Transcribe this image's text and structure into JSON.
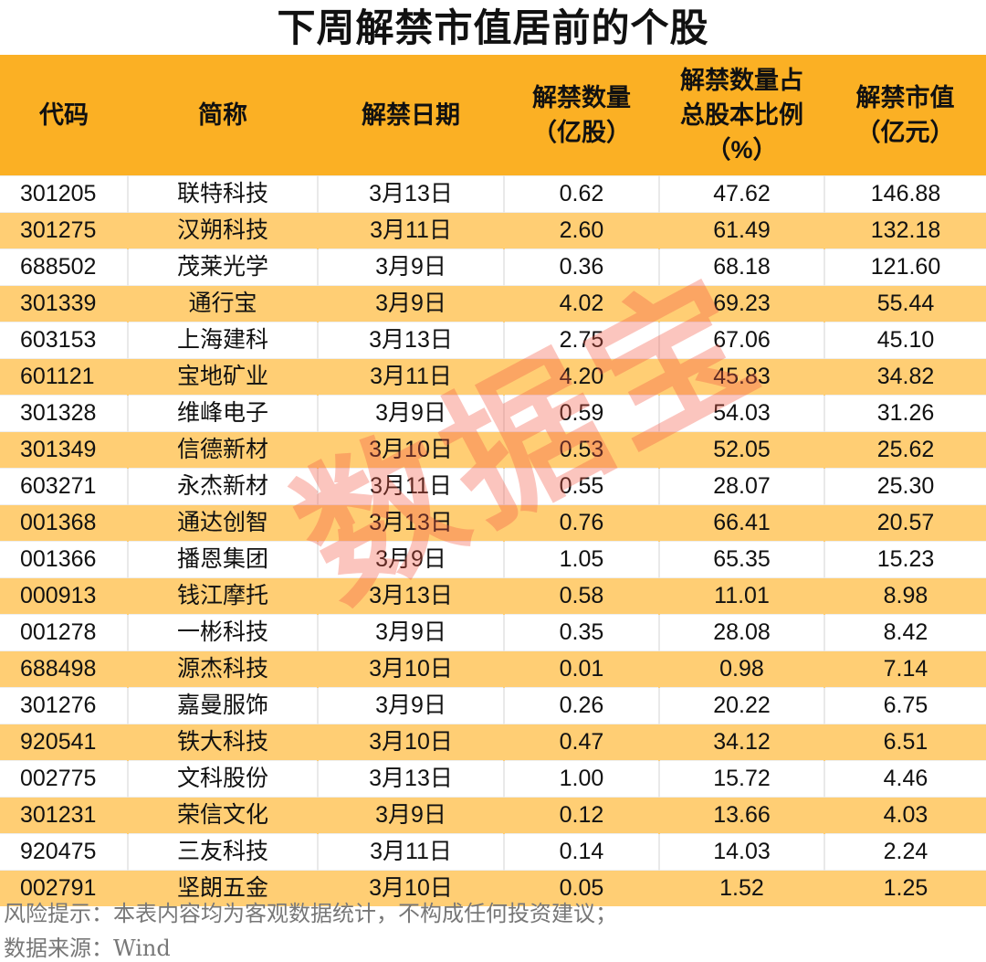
{
  "title": "下周解禁市值居前的个股",
  "watermark": "数据宝",
  "colors": {
    "header_bg": "#FBB024",
    "alt_row_bg": "#FFCE74",
    "watermark": "#F45A46"
  },
  "chart_data": {
    "type": "table",
    "title": "下周解禁市值居前的个股",
    "columns": [
      "代码",
      "简称",
      "解禁日期",
      "解禁数量\n（亿股）",
      "解禁数量占\n总股本比例\n（%）",
      "解禁市值\n（亿元）"
    ],
    "rows": [
      [
        "301205",
        "联特科技",
        "3月13日",
        "0.62",
        "47.62",
        "146.88"
      ],
      [
        "301275",
        "汉朔科技",
        "3月11日",
        "2.60",
        "61.49",
        "132.18"
      ],
      [
        "688502",
        "茂莱光学",
        "3月9日",
        "0.36",
        "68.18",
        "121.60"
      ],
      [
        "301339",
        "通行宝",
        "3月9日",
        "4.02",
        "69.23",
        "55.44"
      ],
      [
        "603153",
        "上海建科",
        "3月13日",
        "2.75",
        "67.06",
        "45.10"
      ],
      [
        "601121",
        "宝地矿业",
        "3月11日",
        "4.20",
        "45.83",
        "34.82"
      ],
      [
        "301328",
        "维峰电子",
        "3月9日",
        "0.59",
        "54.03",
        "31.26"
      ],
      [
        "301349",
        "信德新材",
        "3月10日",
        "0.53",
        "52.05",
        "25.62"
      ],
      [
        "603271",
        "永杰新材",
        "3月11日",
        "0.55",
        "28.07",
        "25.30"
      ],
      [
        "001368",
        "通达创智",
        "3月13日",
        "0.76",
        "66.41",
        "20.57"
      ],
      [
        "001366",
        "播恩集团",
        "3月9日",
        "1.05",
        "65.35",
        "15.23"
      ],
      [
        "000913",
        "钱江摩托",
        "3月13日",
        "0.58",
        "11.01",
        "8.98"
      ],
      [
        "001278",
        "一彬科技",
        "3月9日",
        "0.35",
        "28.08",
        "8.42"
      ],
      [
        "688498",
        "源杰科技",
        "3月10日",
        "0.01",
        "0.98",
        "7.14"
      ],
      [
        "301276",
        "嘉曼服饰",
        "3月9日",
        "0.26",
        "20.22",
        "6.75"
      ],
      [
        "920541",
        "铁大科技",
        "3月10日",
        "0.47",
        "34.12",
        "6.51"
      ],
      [
        "002775",
        "文科股份",
        "3月13日",
        "1.00",
        "15.72",
        "4.46"
      ],
      [
        "301231",
        "荣信文化",
        "3月9日",
        "0.12",
        "13.66",
        "4.03"
      ],
      [
        "920475",
        "三友科技",
        "3月11日",
        "0.14",
        "14.03",
        "2.24"
      ],
      [
        "002791",
        "坚朗五金",
        "3月10日",
        "0.05",
        "1.52",
        "1.25"
      ]
    ]
  },
  "footer": {
    "risk_note": "风险提示：本表内容均为客观数据统计，不构成任何投资建议；",
    "source": "数据来源：Wind"
  }
}
